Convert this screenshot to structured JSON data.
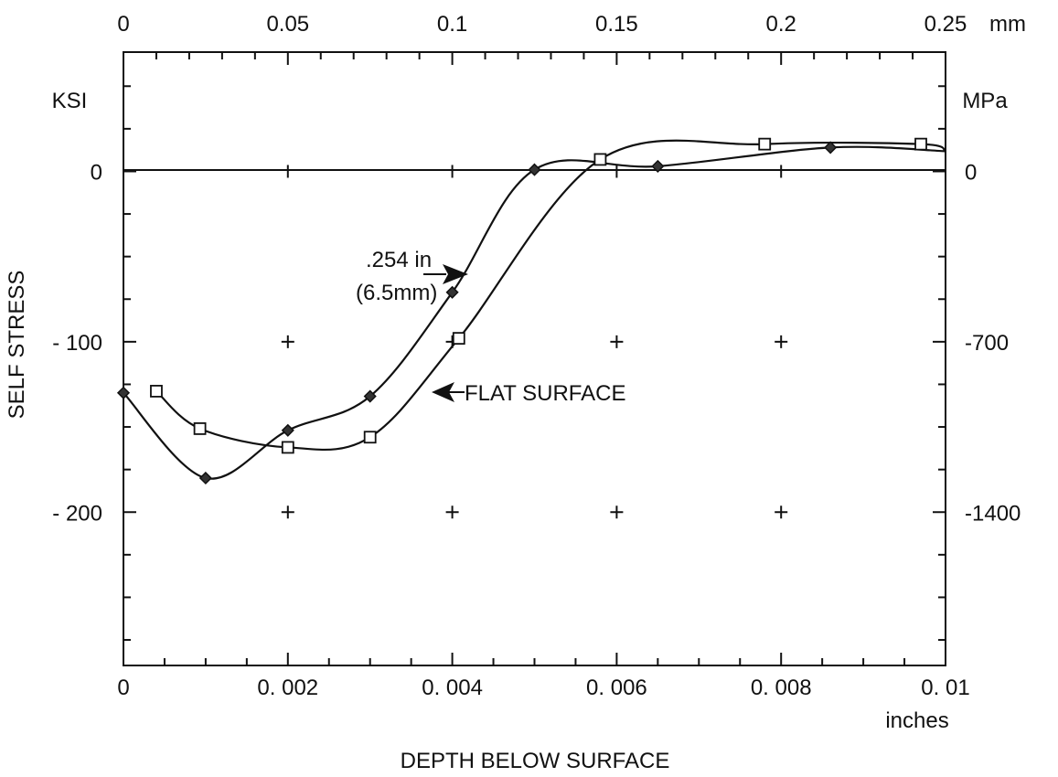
{
  "chart_data": {
    "type": "line",
    "title": "",
    "xlabel": "DEPTH BELOW SURFACE",
    "x_unit_bottom": "inches",
    "x_unit_top": "mm",
    "ylabel": "SELF STRESS",
    "y_unit_left": "KSI",
    "y_unit_right": "MPa",
    "xlim": [
      0,
      0.01
    ],
    "ylim": [
      -290,
      70
    ],
    "grid": false,
    "x_ticks_bottom": [
      {
        "value": 0,
        "label": "0"
      },
      {
        "value": 0.002,
        "label": "0. 002"
      },
      {
        "value": 0.004,
        "label": "0. 004"
      },
      {
        "value": 0.006,
        "label": "0. 006"
      },
      {
        "value": 0.008,
        "label": "0. 008"
      },
      {
        "value": 0.01,
        "label": "0. 01"
      }
    ],
    "x_ticks_top": [
      {
        "value": 0,
        "label": "0"
      },
      {
        "value": 0.05,
        "label": "0.05"
      },
      {
        "value": 0.1,
        "label": "0.1"
      },
      {
        "value": 0.15,
        "label": "0.15"
      },
      {
        "value": 0.2,
        "label": "0.2"
      },
      {
        "value": 0.25,
        "label": "0.25"
      }
    ],
    "y_ticks_left": [
      {
        "value": 0,
        "label": "0"
      },
      {
        "value": -100,
        "label": "- 100"
      },
      {
        "value": -200,
        "label": "- 200"
      }
    ],
    "y_ticks_right": [
      {
        "value": 0,
        "label": "0"
      },
      {
        "value": -100,
        "label": "-700"
      },
      {
        "value": -200,
        "label": "-1400"
      }
    ],
    "series": [
      {
        "marker": "diamond",
        "x": [
          0,
          0.001,
          0.002,
          0.003,
          0.004,
          0.005,
          0.0065,
          0.0086
        ],
        "y": [
          -130,
          -180,
          -152,
          -132,
          -71,
          1,
          3,
          14
        ]
      },
      {
        "marker": "square",
        "x": [
          0.0004,
          0.00093,
          0.002,
          0.003,
          0.00408,
          0.0058,
          0.0078,
          0.0097
        ],
        "y": [
          -129,
          -151,
          -162,
          -156,
          -98,
          7,
          16,
          16
        ]
      }
    ],
    "annotations": [
      {
        "text_line1": ".254 in",
        "text_line2": "(6.5mm)",
        "points_to_x": 0.0041,
        "points_to_y": -62
      },
      {
        "text": "FLAT SURFACE",
        "points_to_x": 0.00375,
        "points_to_y": -131
      }
    ]
  }
}
